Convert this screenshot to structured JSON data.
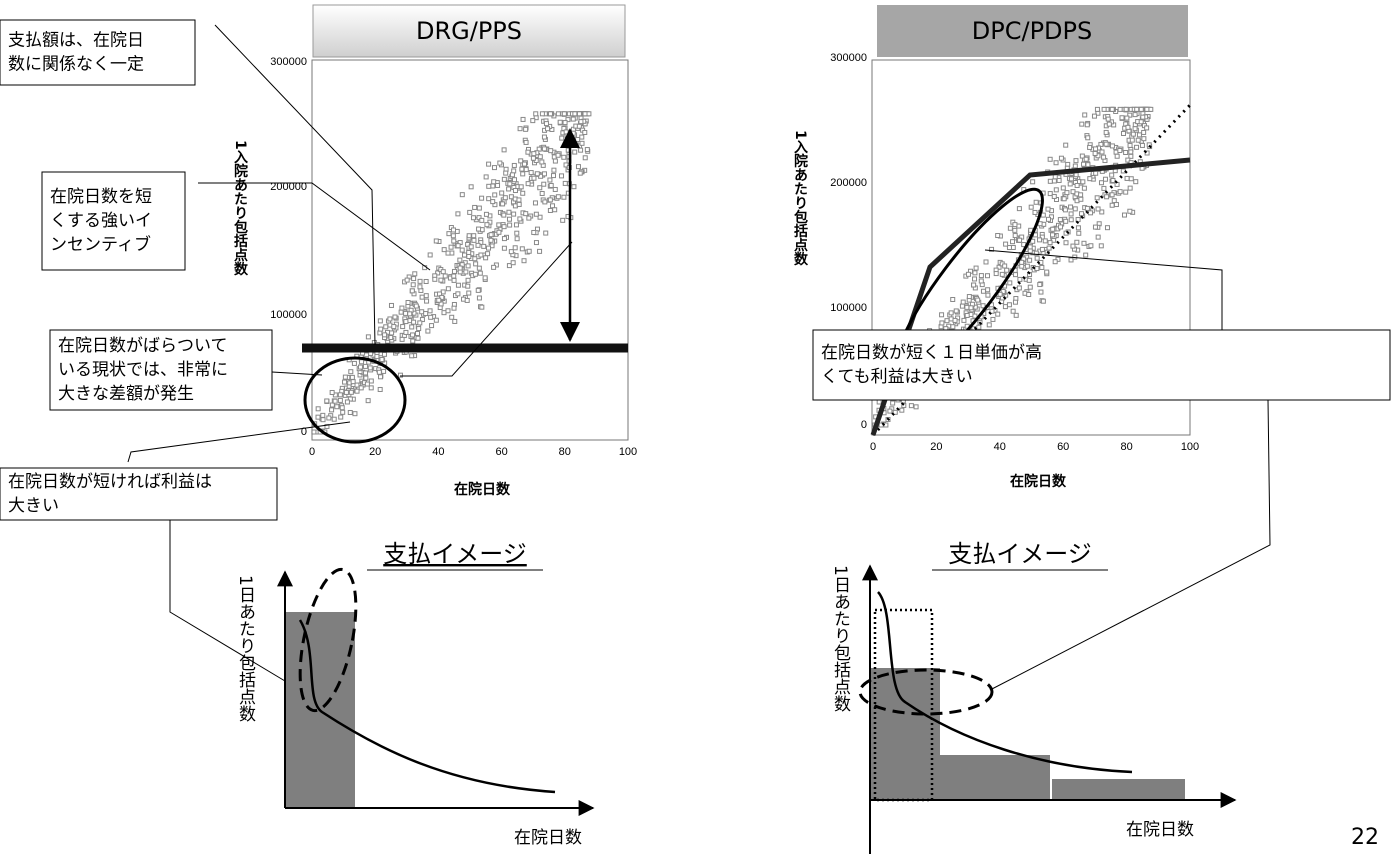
{
  "left": {
    "tab": "DRG/PPS",
    "y_label": "1入院あたり包括点数",
    "x_label": "在院日数",
    "yticks": [
      "0",
      "100000",
      "200000",
      "300000"
    ],
    "xticks": [
      "0",
      "20",
      "40",
      "60",
      "80",
      "100"
    ],
    "callouts": [
      {
        "lines": [
          "支払額は、在院日",
          "数に関係なく一定"
        ]
      },
      {
        "lines": [
          "在院日数を短",
          "くする強いイ",
          "ンセンティブ"
        ]
      },
      {
        "lines": [
          "在院日数がばらついて",
          "いる現状では、非常に",
          "大きな差額が発生"
        ]
      },
      {
        "lines": [
          "在院日数が短ければ利益は",
          "大きい"
        ]
      }
    ],
    "sub_title": "支払イメージ",
    "sub_y_label": "1日あたり包括点数",
    "sub_x_label": "在院日数"
  },
  "right": {
    "tab": "DPC/PDPS",
    "y_label": "1入院あたり包括点数",
    "x_label": "在院日数",
    "yticks": [
      "0",
      "100000",
      "200000",
      "300000"
    ],
    "xticks": [
      "0",
      "20",
      "40",
      "60",
      "80",
      "100"
    ],
    "callouts": [
      {
        "lines": [
          "在院日数が短く１日単価が高",
          "くても利益は大きい"
        ]
      }
    ],
    "sub_title": "支払イメージ",
    "sub_y_label": "1日あたり包括点数",
    "sub_x_label": "在院日数"
  },
  "page_number": "22"
}
